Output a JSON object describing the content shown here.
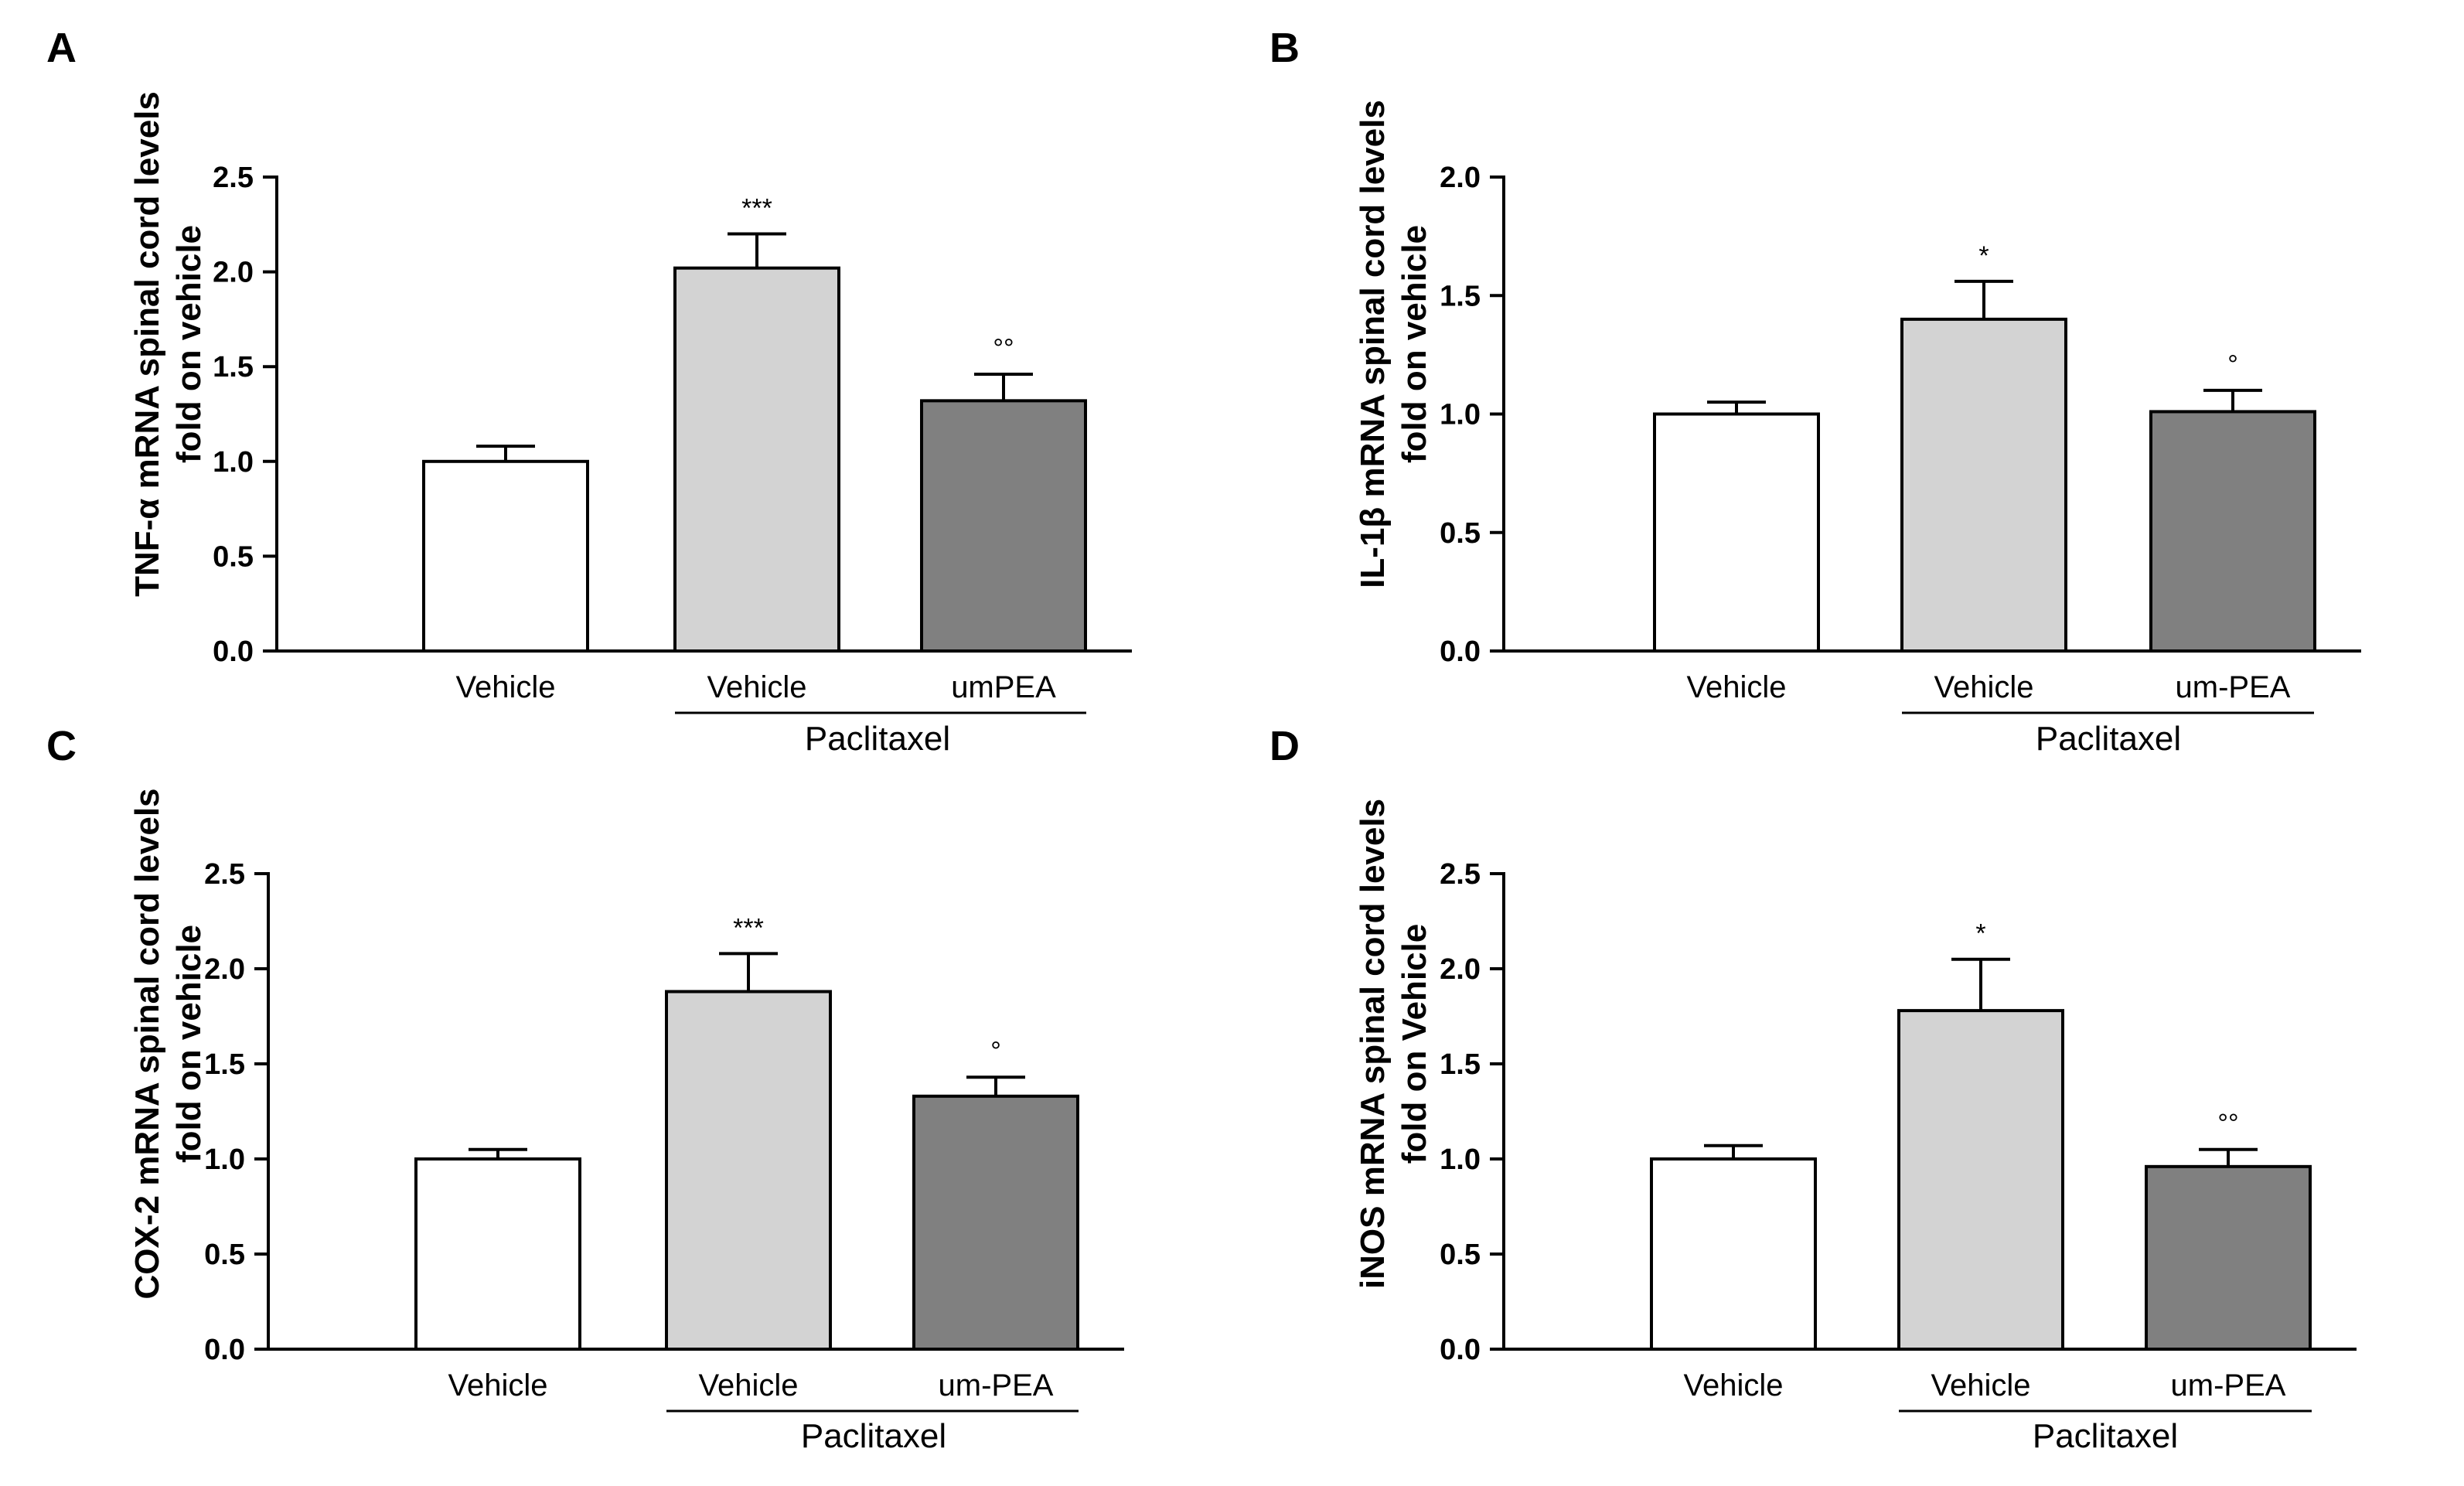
{
  "chart_data": [
    {
      "panel": "A",
      "type": "bar",
      "ylabel_lines": [
        "TNF-α mRNA spinal cord levels",
        "fold on vehicle"
      ],
      "ylim": [
        0,
        2.5
      ],
      "yticks": [
        "0.0",
        "0.5",
        "1.0",
        "1.5",
        "2.0",
        "2.5"
      ],
      "categories": [
        "Vehicle",
        "Vehicle",
        "umPEA"
      ],
      "values": [
        1.0,
        2.02,
        1.32
      ],
      "errors": [
        0.08,
        0.18,
        0.14
      ],
      "significance": [
        "",
        "***",
        "°°"
      ],
      "colors": [
        "#ffffff",
        "#d3d3d3",
        "#808080"
      ],
      "group_label": "Paclitaxel"
    },
    {
      "panel": "B",
      "type": "bar",
      "ylabel_lines": [
        "IL-1β mRNA spinal cord levels",
        "fold on vehicle"
      ],
      "ylim": [
        0,
        2.0
      ],
      "yticks": [
        "0.0",
        "0.5",
        "1.0",
        "1.5",
        "2.0"
      ],
      "categories": [
        "Vehicle",
        "Vehicle",
        "um-PEA"
      ],
      "values": [
        1.0,
        1.4,
        1.01
      ],
      "errors": [
        0.05,
        0.16,
        0.09
      ],
      "significance": [
        "",
        "*",
        "°"
      ],
      "colors": [
        "#ffffff",
        "#d3d3d3",
        "#808080"
      ],
      "group_label": "Paclitaxel"
    },
    {
      "panel": "C",
      "type": "bar",
      "ylabel_lines": [
        "COX-2 mRNA spinal cord levels",
        "fold on vehicle"
      ],
      "ylim": [
        0,
        2.5
      ],
      "yticks": [
        "0.0",
        "0.5",
        "1.0",
        "1.5",
        "2.0",
        "2.5"
      ],
      "categories": [
        "Vehicle",
        "Vehicle",
        "um-PEA"
      ],
      "values": [
        1.0,
        1.88,
        1.33
      ],
      "errors": [
        0.05,
        0.2,
        0.1
      ],
      "significance": [
        "",
        "***",
        "°"
      ],
      "colors": [
        "#ffffff",
        "#d3d3d3",
        "#808080"
      ],
      "group_label": "Paclitaxel"
    },
    {
      "panel": "D",
      "type": "bar",
      "ylabel_lines": [
        "iNOS mRNA spinal cord levels",
        "fold on Vehicle"
      ],
      "ylim": [
        0,
        2.5
      ],
      "yticks": [
        "0.0",
        "0.5",
        "1.0",
        "1.5",
        "2.0",
        "2.5"
      ],
      "categories": [
        "Vehicle",
        "Vehicle",
        "um-PEA"
      ],
      "values": [
        1.0,
        1.78,
        0.96
      ],
      "errors": [
        0.07,
        0.27,
        0.09
      ],
      "significance": [
        "",
        "*",
        "°°"
      ],
      "colors": [
        "#ffffff",
        "#d3d3d3",
        "#808080"
      ],
      "group_label": "Paclitaxel"
    }
  ]
}
